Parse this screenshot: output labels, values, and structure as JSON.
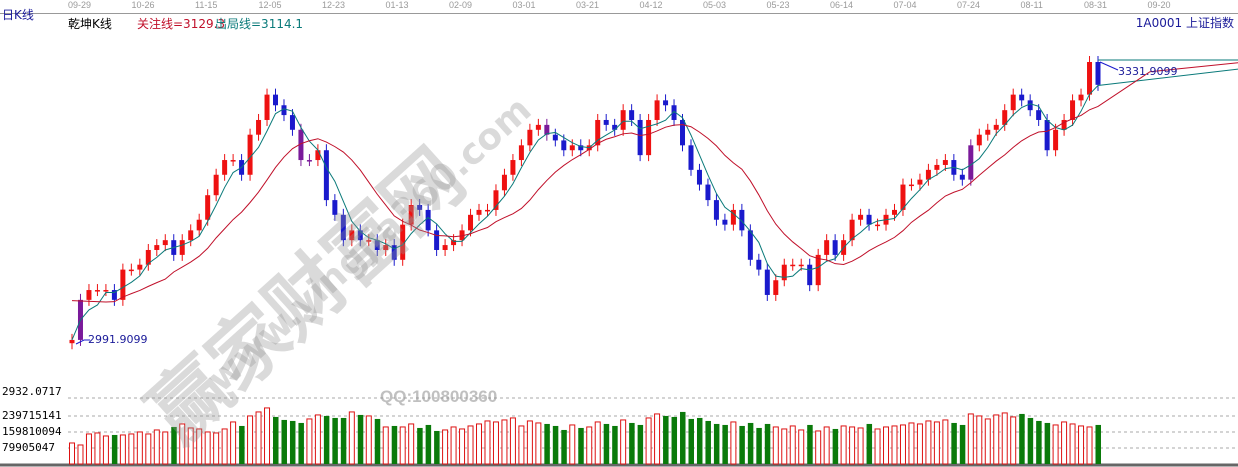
{
  "header": {
    "period": "日K线",
    "indicator": "乾坤K线",
    "focus_line": "关注线=3129.3",
    "exit_line": "出局线=3114.1",
    "symbol": "1A0001  上证指数"
  },
  "colors": {
    "up": "#ee1111",
    "down": "#1a1acc",
    "pivot": "#7a1a9a",
    "focus_line": "#c0102a",
    "exit_line": "#0a7a7a",
    "vol_up": "#dd1111",
    "vol_down": "#0a7a0a",
    "header_blue": "#1a1a99"
  },
  "watermark": {
    "cn": "赢家财富网",
    "url": "www.yingjia360.com",
    "qq": "QQ:100800360"
  },
  "chart_data": {
    "type": "candlestick",
    "dates": [
      "09-29",
      "10-26",
      "11-15",
      "12-05",
      "12-23",
      "01-13",
      "02-09",
      "03-01",
      "03-21",
      "04-12",
      "05-03",
      "05-23",
      "06-14",
      "07-04",
      "07-24",
      "08-11",
      "08-31",
      "09-20"
    ],
    "price_range": [
      2991.9099,
      3331.9099
    ],
    "annotations": {
      "low": "2991.9099",
      "high": "3331.9099"
    },
    "closes": [
      2992,
      3041,
      3053,
      3053,
      3053,
      3041,
      3078,
      3078,
      3084,
      3102,
      3108,
      3114,
      3096,
      3114,
      3126,
      3139,
      3169,
      3194,
      3212,
      3212,
      3194,
      3243,
      3261,
      3292,
      3279,
      3267,
      3249,
      3212,
      3212,
      3224,
      3163,
      3145,
      3114,
      3126,
      3114,
      3114,
      3102,
      3108,
      3090,
      3133,
      3157,
      3151,
      3126,
      3102,
      3108,
      3114,
      3126,
      3145,
      3151,
      3151,
      3175,
      3194,
      3212,
      3230,
      3249,
      3255,
      3243,
      3236,
      3224,
      3230,
      3224,
      3230,
      3261,
      3255,
      3249,
      3273,
      3261,
      3218,
      3261,
      3285,
      3279,
      3261,
      3230,
      3200,
      3182,
      3163,
      3139,
      3133,
      3151,
      3126,
      3090,
      3078,
      3047,
      3065,
      3084,
      3084,
      3084,
      3059,
      3096,
      3114,
      3096,
      3114,
      3139,
      3145,
      3133,
      3133,
      3145,
      3151,
      3182,
      3182,
      3188,
      3200,
      3206,
      3212,
      3194,
      3188,
      3230,
      3243,
      3249,
      3255,
      3273,
      3292,
      3285,
      3273,
      3261,
      3224,
      3249,
      3261,
      3285,
      3292,
      3331.9,
      3304
    ],
    "volume_axis": {
      "ticks": [
        "79905047",
        "159810094",
        "239715141"
      ],
      "top_label": "2932.0717"
    },
    "volume": [
      105000000.0,
      95000000.0,
      150000000.0,
      155000000.0,
      140000000.0,
      145000000.0,
      145000000.0,
      150000000.0,
      160000000.0,
      150000000.0,
      170000000.0,
      160000000.0,
      185000000.0,
      200000000.0,
      180000000.0,
      175000000.0,
      160000000.0,
      155000000.0,
      175000000.0,
      210000000.0,
      190000000.0,
      240000000.0,
      260000000.0,
      280000000.0,
      235000000.0,
      220000000.0,
      215000000.0,
      205000000.0,
      225000000.0,
      245000000.0,
      240000000.0,
      230000000.0,
      230000000.0,
      260000000.0,
      245000000.0,
      240000000.0,
      225000000.0,
      185000000.0,
      190000000.0,
      185000000.0,
      200000000.0,
      180000000.0,
      195000000.0,
      165000000.0,
      170000000.0,
      185000000.0,
      175000000.0,
      190000000.0,
      200000000.0,
      215000000.0,
      210000000.0,
      220000000.0,
      230000000.0,
      190000000.0,
      215000000.0,
      205000000.0,
      200000000.0,
      190000000.0,
      170000000.0,
      195000000.0,
      180000000.0,
      185000000.0,
      210000000.0,
      200000000.0,
      190000000.0,
      220000000.0,
      205000000.0,
      195000000.0,
      230000000.0,
      250000000.0,
      240000000.0,
      235000000.0,
      260000000.0,
      225000000.0,
      230000000.0,
      215000000.0,
      200000000.0,
      195000000.0,
      210000000.0,
      190000000.0,
      205000000.0,
      180000000.0,
      200000000.0,
      185000000.0,
      175000000.0,
      190000000.0,
      170000000.0,
      195000000.0,
      165000000.0,
      185000000.0,
      175000000.0,
      190000000.0,
      185000000.0,
      180000000.0,
      200000000.0,
      175000000.0,
      185000000.0,
      190000000.0,
      195000000.0,
      205000000.0,
      200000000.0,
      215000000.0,
      210000000.0,
      220000000.0,
      205000000.0,
      195000000.0,
      250000000.0,
      240000000.0,
      225000000.0,
      245000000.0,
      255000000.0,
      235000000.0,
      250000000.0,
      230000000.0,
      215000000.0,
      205000000.0,
      195000000.0,
      210000000.0,
      200000000.0,
      190000000.0,
      185000000.0,
      195000000.0
    ]
  }
}
